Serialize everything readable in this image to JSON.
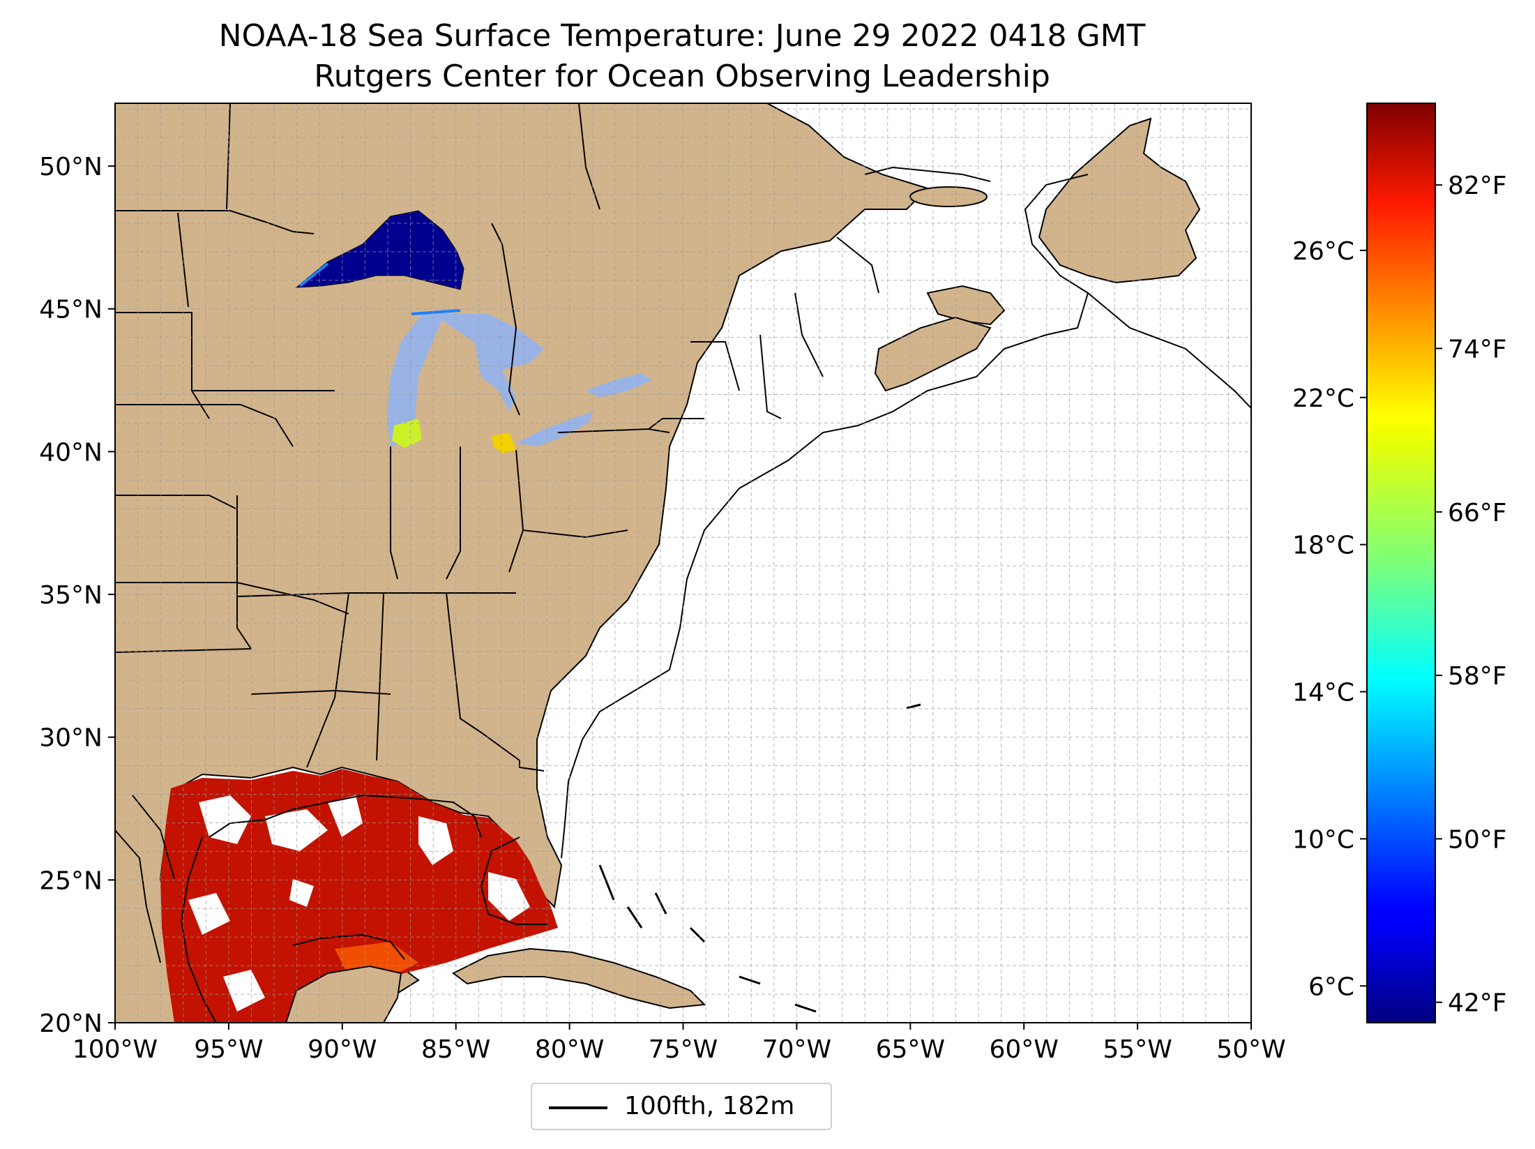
{
  "title": {
    "line1": "NOAA-18 Sea Surface Temperature: June 29 2022 0418 GMT",
    "line2": "Rutgers Center for Ocean Observing Leadership"
  },
  "map": {
    "lon_range": [
      -100,
      -50
    ],
    "lat_range": [
      20,
      52.2
    ],
    "x_ticks": [
      "100°W",
      "95°W",
      "90°W",
      "85°W",
      "80°W",
      "75°W",
      "70°W",
      "65°W",
      "60°W",
      "55°W",
      "50°W"
    ],
    "y_ticks": [
      "20°N",
      "25°N",
      "30°N",
      "35°N",
      "40°N",
      "45°N",
      "50°N"
    ],
    "grid": true,
    "land_color": "#d2b48c",
    "lake_color": "#99b3e6",
    "ocean_color": "#ffffff"
  },
  "legend": {
    "label": "100fth, 182m",
    "line_color": "#000000"
  },
  "colorbar": {
    "colormap": "jet",
    "celsius_range": [
      5,
      30
    ],
    "celsius_ticks": [
      "26°C",
      "22°C",
      "18°C",
      "14°C",
      "10°C",
      "6°C"
    ],
    "fahrenheit_ticks": [
      "82°F",
      "74°F",
      "66°F",
      "58°F",
      "50°F",
      "42°F"
    ]
  }
}
